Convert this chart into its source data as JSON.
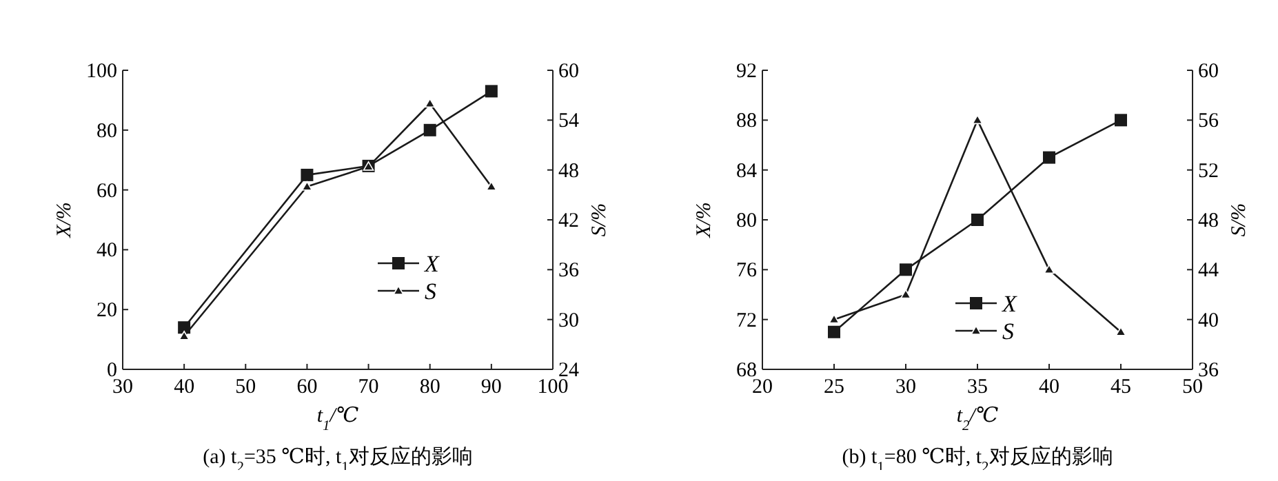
{
  "chart_data": [
    {
      "type": "line",
      "title": "(a) t$_{2}$=35 ℃时, t$_{1}$对反应的影响",
      "xlabel": "t$_{1}$/℃",
      "ylabel": "X/%",
      "y2label": "S/%",
      "x": [
        40,
        60,
        70,
        80,
        90
      ],
      "xlim": [
        30,
        100
      ],
      "xticks": [
        30,
        40,
        50,
        60,
        70,
        80,
        90,
        100
      ],
      "ylim": [
        0,
        100
      ],
      "yticks": [
        0,
        20,
        40,
        60,
        80,
        100
      ],
      "y2lim": [
        24,
        60
      ],
      "y2ticks": [
        24,
        30,
        36,
        42,
        48,
        54,
        60
      ],
      "legend": "right",
      "grid": false,
      "series": [
        {
          "name": "X",
          "color": "#1a1a1a",
          "marker": "square",
          "values": [
            14,
            65,
            68,
            80,
            93
          ]
        },
        {
          "name": "S",
          "color": "#1a1a1a",
          "marker": "triangle",
          "axis": "y2",
          "values": [
            28,
            46,
            48.4,
            56,
            46
          ]
        }
      ]
    },
    {
      "type": "line",
      "title": "(b) t$_{1}$=80 ℃时, t$_{2}$对反应的影响",
      "xlabel": "t$_{2}$/℃",
      "ylabel": "X/%",
      "y2label": "S/%",
      "x": [
        25,
        30,
        35,
        40,
        45
      ],
      "xlim": [
        20,
        50
      ],
      "xticks": [
        20,
        25,
        30,
        35,
        40,
        45,
        50
      ],
      "ylim": [
        68,
        92
      ],
      "yticks": [
        68,
        72,
        76,
        80,
        84,
        88,
        92
      ],
      "y2lim": [
        36,
        60
      ],
      "y2ticks": [
        36,
        40,
        44,
        48,
        52,
        56,
        60
      ],
      "legend": "bottom",
      "grid": false,
      "series": [
        {
          "name": "X",
          "color": "#1a1a1a",
          "marker": "square",
          "values": [
            71,
            76,
            80,
            85,
            88
          ]
        },
        {
          "name": "S",
          "color": "#1a1a1a",
          "marker": "triangle",
          "axis": "y2",
          "values": [
            40,
            42,
            56,
            44,
            39
          ]
        }
      ]
    }
  ]
}
